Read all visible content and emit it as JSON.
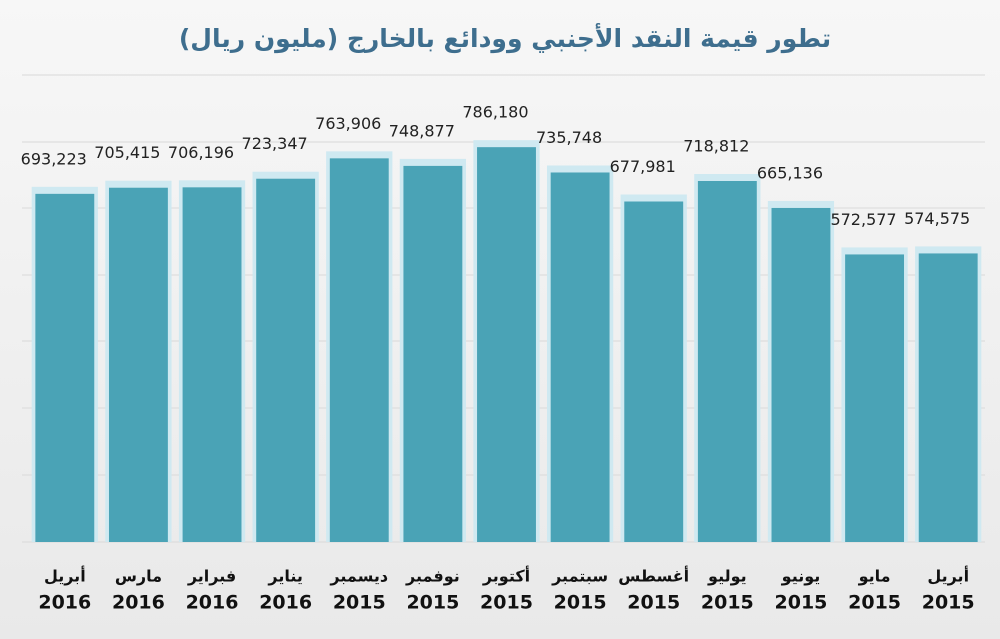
{
  "chart_data": {
    "type": "bar",
    "title": "تطور قيمة النقد الأجنبي وودائع بالخارج (مليون ريال)",
    "categories": [
      "أبريل",
      "مارس",
      "فبراير",
      "يناير",
      "ديسمبر",
      "نوفمبر",
      "أكتوبر",
      "سبتمبر",
      "أغسطس",
      "يوليو",
      "يونيو",
      "مايو",
      "أبريل"
    ],
    "category_years": [
      "2016",
      "2016",
      "2016",
      "2016",
      "2015",
      "2015",
      "2015",
      "2015",
      "2015",
      "2015",
      "2015",
      "2015",
      "2015"
    ],
    "values": [
      693223,
      705415,
      706196,
      723347,
      763906,
      748877,
      786180,
      735748,
      677981,
      718812,
      665136,
      572577,
      574575
    ],
    "value_labels": [
      "693,223",
      "705,415",
      "706,196",
      "723,347",
      "763,906",
      "748,877",
      "786,180",
      "735,748",
      "677,981",
      "718,812",
      "665,136",
      "572,577",
      "574,575"
    ],
    "color": "#4aa3b6",
    "ylim": [
      0,
      900000
    ]
  }
}
